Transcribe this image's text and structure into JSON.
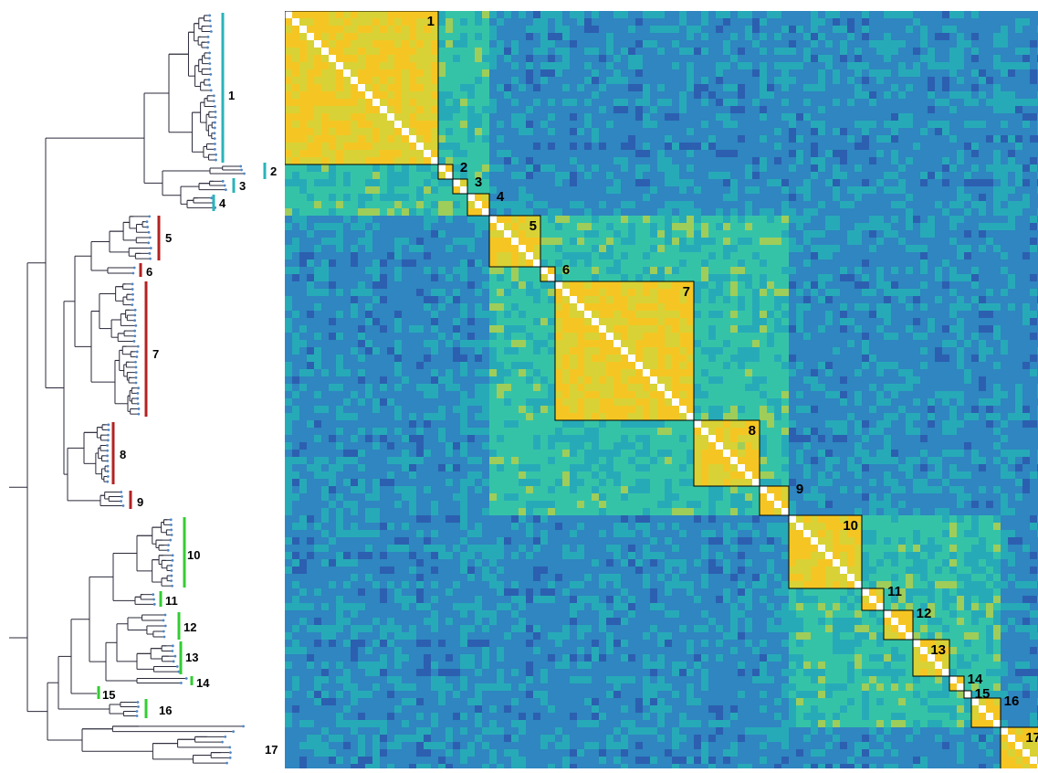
{
  "figure": {
    "tree": {
      "clades": [
        {
          "label": "1",
          "color": "#2bb3ba"
        },
        {
          "label": "2",
          "color": "#2bb3ba"
        },
        {
          "label": "3",
          "color": "#2bb3ba"
        },
        {
          "label": "4",
          "color": "#2bb3ba"
        },
        {
          "label": "5",
          "color": "#b22222"
        },
        {
          "label": "6",
          "color": "#b22222"
        },
        {
          "label": "7",
          "color": "#b22222"
        },
        {
          "label": "8",
          "color": "#b22222"
        },
        {
          "label": "9",
          "color": "#b22222"
        },
        {
          "label": "10",
          "color": "#33cc33"
        },
        {
          "label": "11",
          "color": "#33cc33"
        },
        {
          "label": "12",
          "color": "#33cc33"
        },
        {
          "label": "13",
          "color": "#33cc33"
        },
        {
          "label": "14",
          "color": "#33cc33"
        },
        {
          "label": "15",
          "color": "#33cc33"
        },
        {
          "label": "16",
          "color": "#33cc33"
        },
        {
          "label": "17",
          "color": "#000000"
        }
      ]
    },
    "heatmap": {
      "colormap": [
        "#1b2e8c",
        "#2c5fb0",
        "#2f86c0",
        "#27aab8",
        "#35c3a8",
        "#9fcd5a",
        "#d8d236",
        "#f5c623"
      ],
      "diagonal_color": "#ffffff",
      "blocks": [
        {
          "label": "1"
        },
        {
          "label": "2"
        },
        {
          "label": "3"
        },
        {
          "label": "4"
        },
        {
          "label": "5"
        },
        {
          "label": "6"
        },
        {
          "label": "7"
        },
        {
          "label": "8"
        },
        {
          "label": "9"
        },
        {
          "label": "10"
        },
        {
          "label": "11"
        },
        {
          "label": "12"
        },
        {
          "label": "13"
        },
        {
          "label": "14"
        },
        {
          "label": "15"
        },
        {
          "label": "16"
        },
        {
          "label": "17"
        }
      ]
    }
  }
}
